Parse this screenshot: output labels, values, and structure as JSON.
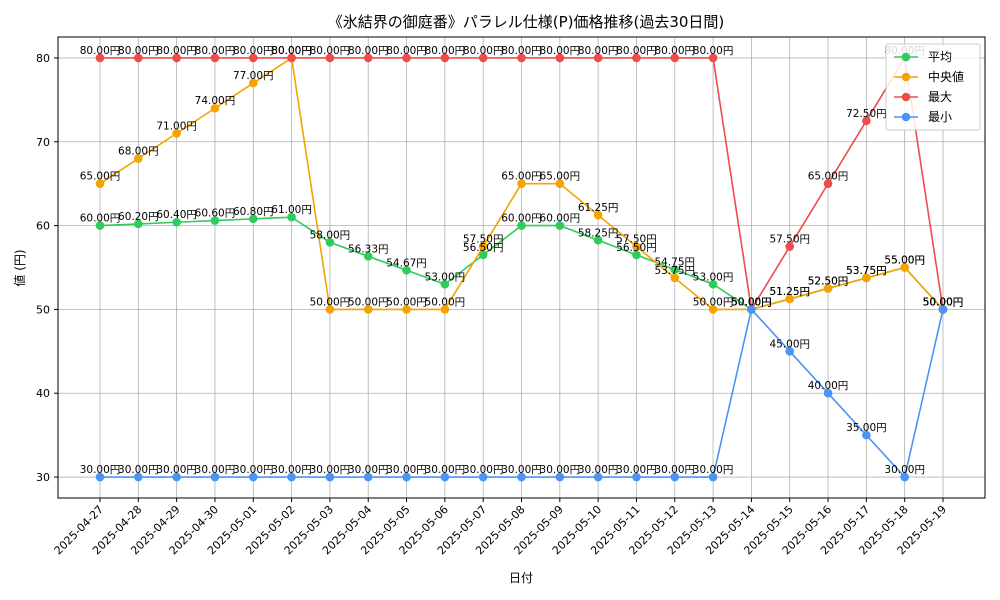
{
  "chart_data": {
    "type": "line",
    "title": "《氷結界の御庭番》パラレル仕様(P)価格推移(過去30日間)",
    "xlabel": "日付",
    "ylabel": "値 (円)",
    "ylim": [
      27.5,
      82.5
    ],
    "yticks": [
      30,
      40,
      50,
      60,
      70,
      80
    ],
    "grid": true,
    "legend_position": "top-right",
    "label_suffix": "円",
    "categories": [
      "2025-04-27",
      "2025-04-28",
      "2025-04-29",
      "2025-04-30",
      "2025-05-01",
      "2025-05-02",
      "2025-05-03",
      "2025-05-04",
      "2025-05-05",
      "2025-05-06",
      "2025-05-07",
      "2025-05-08",
      "2025-05-09",
      "2025-05-10",
      "2025-05-11",
      "2025-05-12",
      "2025-05-13",
      "2025-05-14",
      "2025-05-15",
      "2025-05-16",
      "2025-05-17",
      "2025-05-18",
      "2025-05-19"
    ],
    "series": [
      {
        "name": "平均",
        "color": "#2ecc5a",
        "values": [
          60.0,
          60.2,
          60.4,
          60.6,
          60.8,
          61.0,
          58.0,
          56.33,
          54.67,
          53.0,
          56.5,
          60.0,
          60.0,
          58.25,
          56.5,
          54.75,
          53.0,
          50.0,
          51.25,
          52.5,
          53.75,
          55.0,
          50.0
        ]
      },
      {
        "name": "中央値",
        "color": "#f5a300",
        "values": [
          65.0,
          68.0,
          71.0,
          74.0,
          77.0,
          80.0,
          50.0,
          50.0,
          50.0,
          50.0,
          57.5,
          65.0,
          65.0,
          61.25,
          57.5,
          53.75,
          50.0,
          50.0,
          51.25,
          52.5,
          53.75,
          55.0,
          50.0
        ]
      },
      {
        "name": "最大",
        "color": "#ef4b4b",
        "values": [
          80.0,
          80.0,
          80.0,
          80.0,
          80.0,
          80.0,
          80.0,
          80.0,
          80.0,
          80.0,
          80.0,
          80.0,
          80.0,
          80.0,
          80.0,
          80.0,
          80.0,
          50.0,
          57.5,
          65.0,
          72.5,
          80.0,
          50.0
        ]
      },
      {
        "name": "最小",
        "color": "#4a94f5",
        "values": [
          30.0,
          30.0,
          30.0,
          30.0,
          30.0,
          30.0,
          30.0,
          30.0,
          30.0,
          30.0,
          30.0,
          30.0,
          30.0,
          30.0,
          30.0,
          30.0,
          30.0,
          50.0,
          45.0,
          40.0,
          35.0,
          30.0,
          50.0
        ]
      }
    ]
  }
}
